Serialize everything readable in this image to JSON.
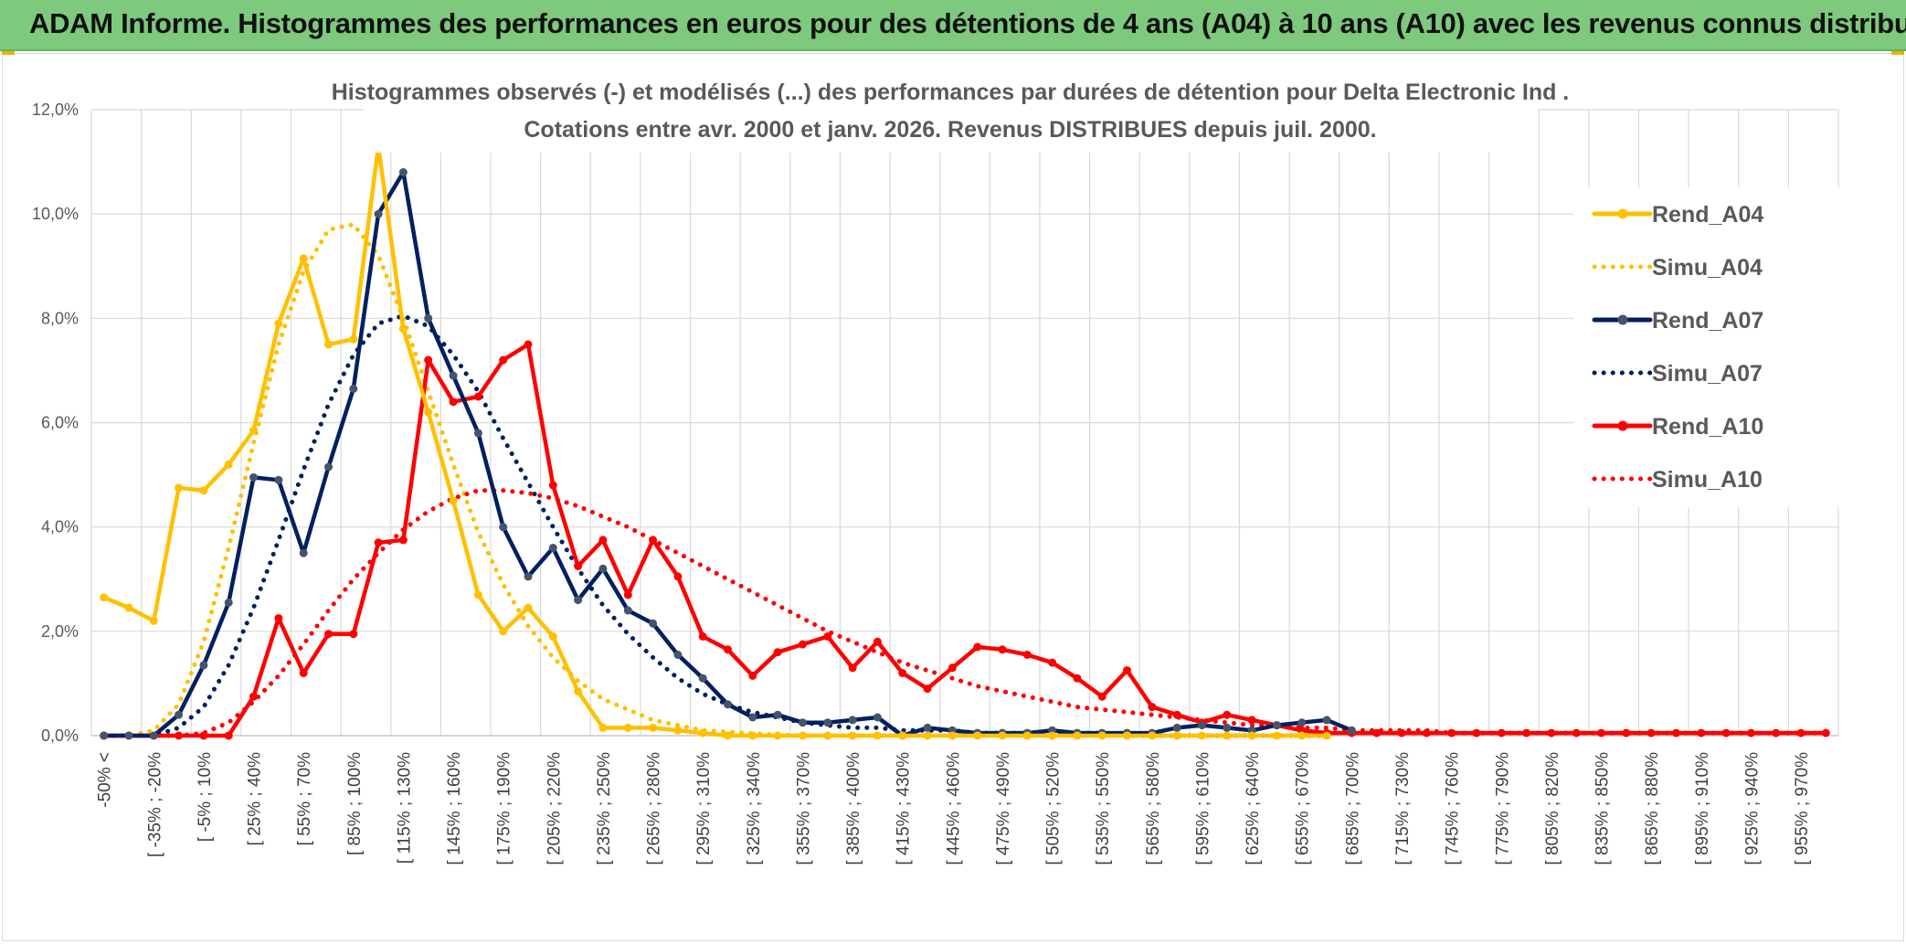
{
  "header": {
    "title": "ADAM Informe. Histogrammes des performances en euros pour des détentions de 4 ans (A04) à 10 ans (A10) avec les revenus connus distribués"
  },
  "chart_data": {
    "type": "line",
    "title_line1": "Histogrammes observés (-) et modélisés (...) des performances par durées de détention pour Delta Electronic Ind .",
    "title_line2": "Cotations entre avr. 2000 et janv. 2026. Revenus DISTRIBUES depuis juil. 2000.",
    "xlabel": "",
    "ylabel": "",
    "ylim": [
      0,
      12
    ],
    "y_ticks": [
      "0,0%",
      "2,0%",
      "4,0%",
      "6,0%",
      "8,0%",
      "10,0%",
      "12,0%"
    ],
    "legend_position": "right",
    "x_tick_labels": [
      "-50% <",
      "[ -35% ; -20%",
      "[ -5% ; 10%",
      "[ 25% ; 40%",
      "[ 55% ; 70%",
      "[ 85% ; 100%",
      "[ 115% ; 130%",
      "[ 145% ; 160%",
      "[ 175% ; 190%",
      "[ 205% ; 220%",
      "[ 235% ; 250%",
      "[ 265% ; 280%",
      "[ 295% ; 310%",
      "[ 325% ; 340%",
      "[ 355% ; 370%",
      "[ 385% ; 400%",
      "[ 415% ; 430%",
      "[ 445% ; 460%",
      "[ 475% ; 490%",
      "[ 505% ; 520%",
      "[ 535% ; 550%",
      "[ 565% ; 580%",
      "[ 595% ; 610%",
      "[ 625% ; 640%",
      "[ 655% ; 670%",
      "[ 685% ; 700%",
      "[ 715% ; 730%",
      "[ 745% ; 760%",
      "[ 775% ; 790%",
      "[ 805% ; 820%",
      "[ 835% ; 850%",
      "[ 865% ; 880%",
      "[ 895% ; 910%",
      "[ 925% ; 940%",
      "[ 955% ; 970%"
    ],
    "series": [
      {
        "name": "Rend_A04",
        "style": "solid",
        "color": "#ffc000",
        "values": [
          2.65,
          2.45,
          2.2,
          4.75,
          4.7,
          5.2,
          5.85,
          7.9,
          9.15,
          7.5,
          7.6,
          11.3,
          7.8,
          6.2,
          4.5,
          2.7,
          2.0,
          2.45,
          1.9,
          0.85,
          0.15,
          0.15,
          0.15,
          0.1,
          0.05,
          0.0,
          0.0,
          0.0,
          0.0,
          0.0,
          0.0,
          0.0,
          0.0,
          0.0,
          0.0,
          0.0,
          0.0,
          0.0,
          0.0,
          0.0,
          0.0,
          0.0,
          0.0,
          0.0,
          0.0,
          0.0,
          0.0,
          0.0,
          0.0,
          0.0
        ]
      },
      {
        "name": "Simu_A04",
        "style": "dotted",
        "color": "#ffc000",
        "values": [
          0.0,
          0.0,
          0.1,
          0.6,
          1.8,
          3.6,
          5.6,
          7.5,
          8.9,
          9.7,
          9.8,
          9.2,
          8.0,
          6.6,
          5.2,
          3.9,
          2.9,
          2.1,
          1.5,
          1.05,
          0.7,
          0.5,
          0.3,
          0.2,
          0.1,
          0.07,
          0.04,
          0.02,
          0.0,
          0.0,
          0.0,
          0.0,
          0.0,
          0.0,
          0.0,
          0.0,
          0.0,
          0.0,
          0.0,
          0.0,
          0.0,
          0.0,
          0.0,
          0.0,
          0.0,
          0.0,
          0.0,
          0.0,
          0.0,
          0.0
        ]
      },
      {
        "name": "Rend_A07",
        "style": "solid",
        "color": "#002060",
        "values": [
          0.0,
          0.0,
          0.0,
          0.4,
          1.35,
          2.55,
          4.95,
          4.9,
          3.5,
          5.15,
          6.65,
          10.0,
          10.8,
          8.0,
          6.9,
          5.8,
          4.0,
          3.05,
          3.6,
          2.6,
          3.2,
          2.4,
          2.15,
          1.55,
          1.1,
          0.6,
          0.35,
          0.4,
          0.25,
          0.25,
          0.3,
          0.35,
          0.0,
          0.15,
          0.1,
          0.05,
          0.05,
          0.05,
          0.1,
          0.05,
          0.05,
          0.05,
          0.05,
          0.15,
          0.2,
          0.15,
          0.1,
          0.2,
          0.25,
          0.3,
          0.1
        ]
      },
      {
        "name": "Simu_A07",
        "style": "dotted",
        "color": "#002060",
        "values": [
          0.0,
          0.0,
          0.0,
          0.15,
          0.55,
          1.35,
          2.45,
          3.75,
          5.1,
          6.35,
          7.3,
          7.9,
          8.05,
          7.85,
          7.3,
          6.6,
          5.7,
          4.85,
          4.0,
          3.2,
          2.5,
          1.95,
          1.5,
          1.1,
          0.8,
          0.6,
          0.45,
          0.35,
          0.25,
          0.2,
          0.15,
          0.15,
          0.1,
          0.1,
          0.1,
          0.05,
          0.05,
          0.05,
          0.05,
          0.05,
          0.05,
          0.0,
          0.0,
          0.0,
          0.0,
          0.0,
          0.0,
          0.0,
          0.0,
          0.0
        ]
      },
      {
        "name": "Rend_A10",
        "style": "solid",
        "color": "#ff0000",
        "values": [
          0.0,
          0.0,
          0.0,
          0.0,
          0.0,
          0.0,
          0.75,
          2.25,
          1.2,
          1.95,
          1.95,
          3.7,
          3.75,
          7.2,
          6.4,
          6.5,
          7.2,
          7.5,
          4.8,
          3.25,
          3.75,
          2.7,
          3.75,
          3.05,
          1.9,
          1.65,
          1.15,
          1.6,
          1.75,
          1.9,
          1.3,
          1.8,
          1.2,
          0.9,
          1.3,
          1.7,
          1.65,
          1.55,
          1.4,
          1.1,
          0.75,
          1.25,
          0.55,
          0.4,
          0.25,
          0.4,
          0.3,
          0.2,
          0.1,
          0.05,
          0.05,
          0.05,
          0.05,
          0.05,
          0.05,
          0.05,
          0.05,
          0.05,
          0.05,
          0.05,
          0.05,
          0.05,
          0.05,
          0.05,
          0.05,
          0.05,
          0.05,
          0.05,
          0.05,
          0.05
        ]
      },
      {
        "name": "Simu_A10",
        "style": "dotted",
        "color": "#ff0000",
        "values": [
          0.0,
          0.0,
          0.0,
          0.0,
          0.05,
          0.25,
          0.65,
          1.15,
          1.75,
          2.4,
          3.0,
          3.5,
          3.95,
          4.3,
          4.55,
          4.7,
          4.7,
          4.65,
          4.55,
          4.4,
          4.2,
          4.0,
          3.75,
          3.5,
          3.25,
          3.0,
          2.75,
          2.5,
          2.25,
          2.0,
          1.8,
          1.6,
          1.4,
          1.25,
          1.1,
          0.95,
          0.85,
          0.75,
          0.65,
          0.55,
          0.5,
          0.45,
          0.4,
          0.35,
          0.3,
          0.25,
          0.2,
          0.2,
          0.15,
          0.15,
          0.1,
          0.1,
          0.1,
          0.1,
          0.05,
          0.05,
          0.05,
          0.05,
          0.05,
          0.05,
          0.05,
          0.05,
          0.05,
          0.05,
          0.05,
          0.05,
          0.05,
          0.05,
          0.05,
          0.05
        ]
      }
    ]
  }
}
